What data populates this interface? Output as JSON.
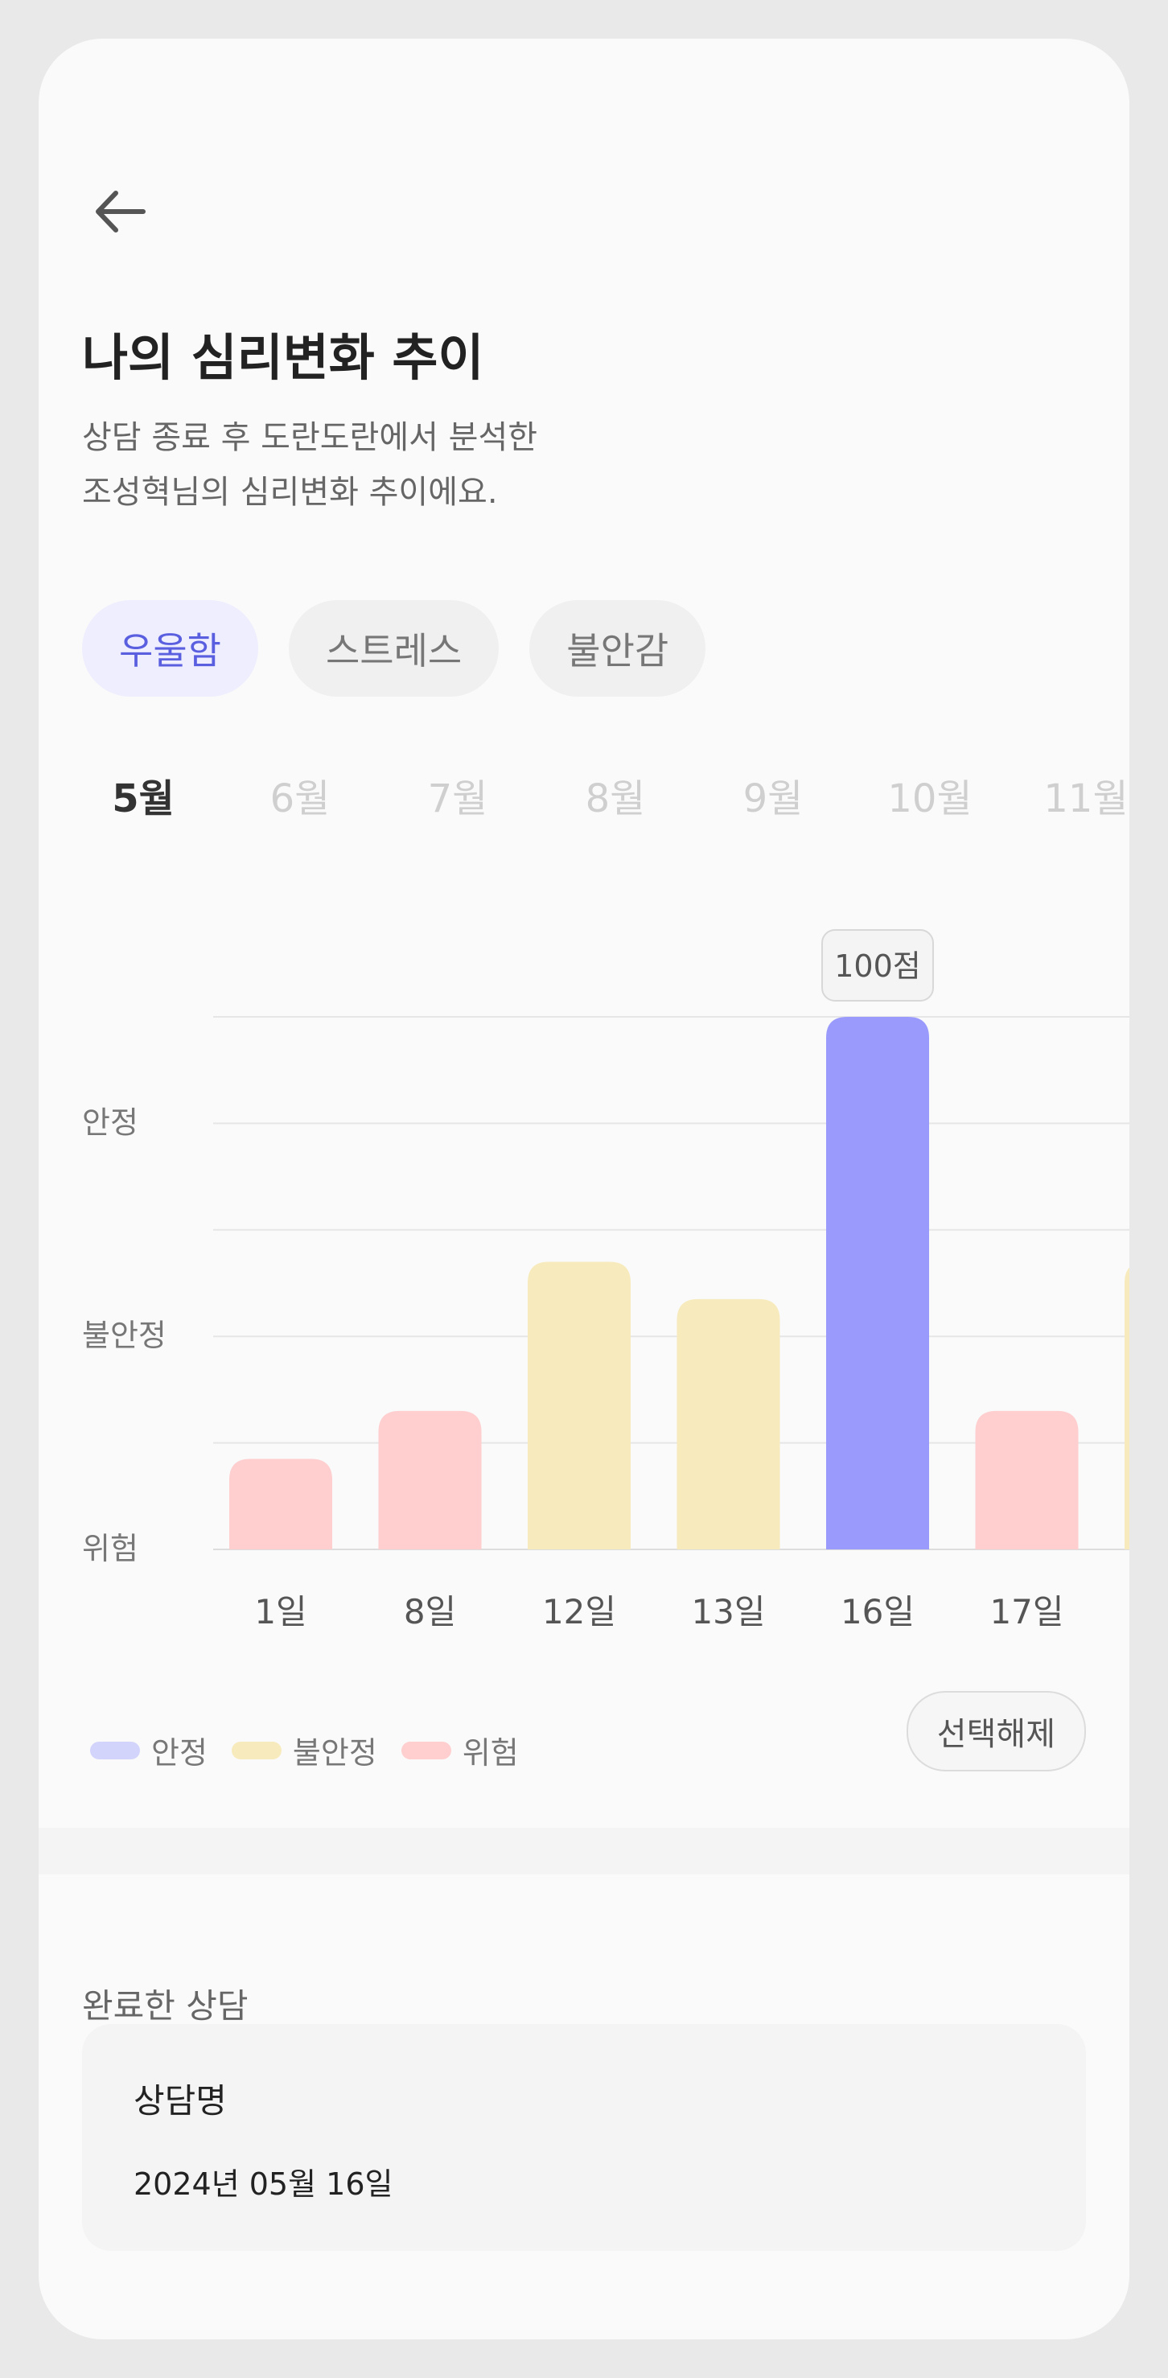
{
  "header": {
    "title": "나의 심리변화 추이",
    "subtitle_lines": [
      "상담 종료 후 도란도란에서 분석한",
      "조성혁님의 심리변화 추이에요."
    ]
  },
  "tabs": [
    {
      "label": "우울함",
      "active": true
    },
    {
      "label": "스트레스",
      "active": false
    },
    {
      "label": "불안감",
      "active": false
    }
  ],
  "months": [
    {
      "label": "5월",
      "active": true
    },
    {
      "label": "6월",
      "active": false
    },
    {
      "label": "7월",
      "active": false
    },
    {
      "label": "8월",
      "active": false
    },
    {
      "label": "9월",
      "active": false
    },
    {
      "label": "10월",
      "active": false
    },
    {
      "label": "11월",
      "active": false
    }
  ],
  "chart_data": {
    "type": "bar",
    "categories": [
      "1일",
      "8일",
      "12일",
      "13일",
      "16일",
      "17일"
    ],
    "values": [
      17,
      26,
      54,
      47,
      100,
      26
    ],
    "levels": [
      "위험",
      "위험",
      "불안정",
      "불안정",
      "안정",
      "위험"
    ],
    "ylim": [
      0,
      100
    ],
    "y_levels": [
      "위험",
      "불안정",
      "안정"
    ],
    "selected_index": 4,
    "selected_label": "100점",
    "partial_next_level": "불안정",
    "partial_next_value": 54,
    "grid": true
  },
  "colors": {
    "안정": "#9a9afd",
    "안정_legend": "#d3d4fb",
    "불안정": "#f7ebbd",
    "위험": "#ffcecf",
    "accent": "#5a5fe0"
  },
  "legend": [
    {
      "label": "안정",
      "color": "#d3d4fb"
    },
    {
      "label": "불안정",
      "color": "#f7ebbd"
    },
    {
      "label": "위험",
      "color": "#ffcecf"
    }
  ],
  "deselect_label": "선택해제",
  "completed": {
    "section_title": "완료한 상담",
    "card_title": "상담명",
    "card_date": "2024년 05월 16일"
  }
}
